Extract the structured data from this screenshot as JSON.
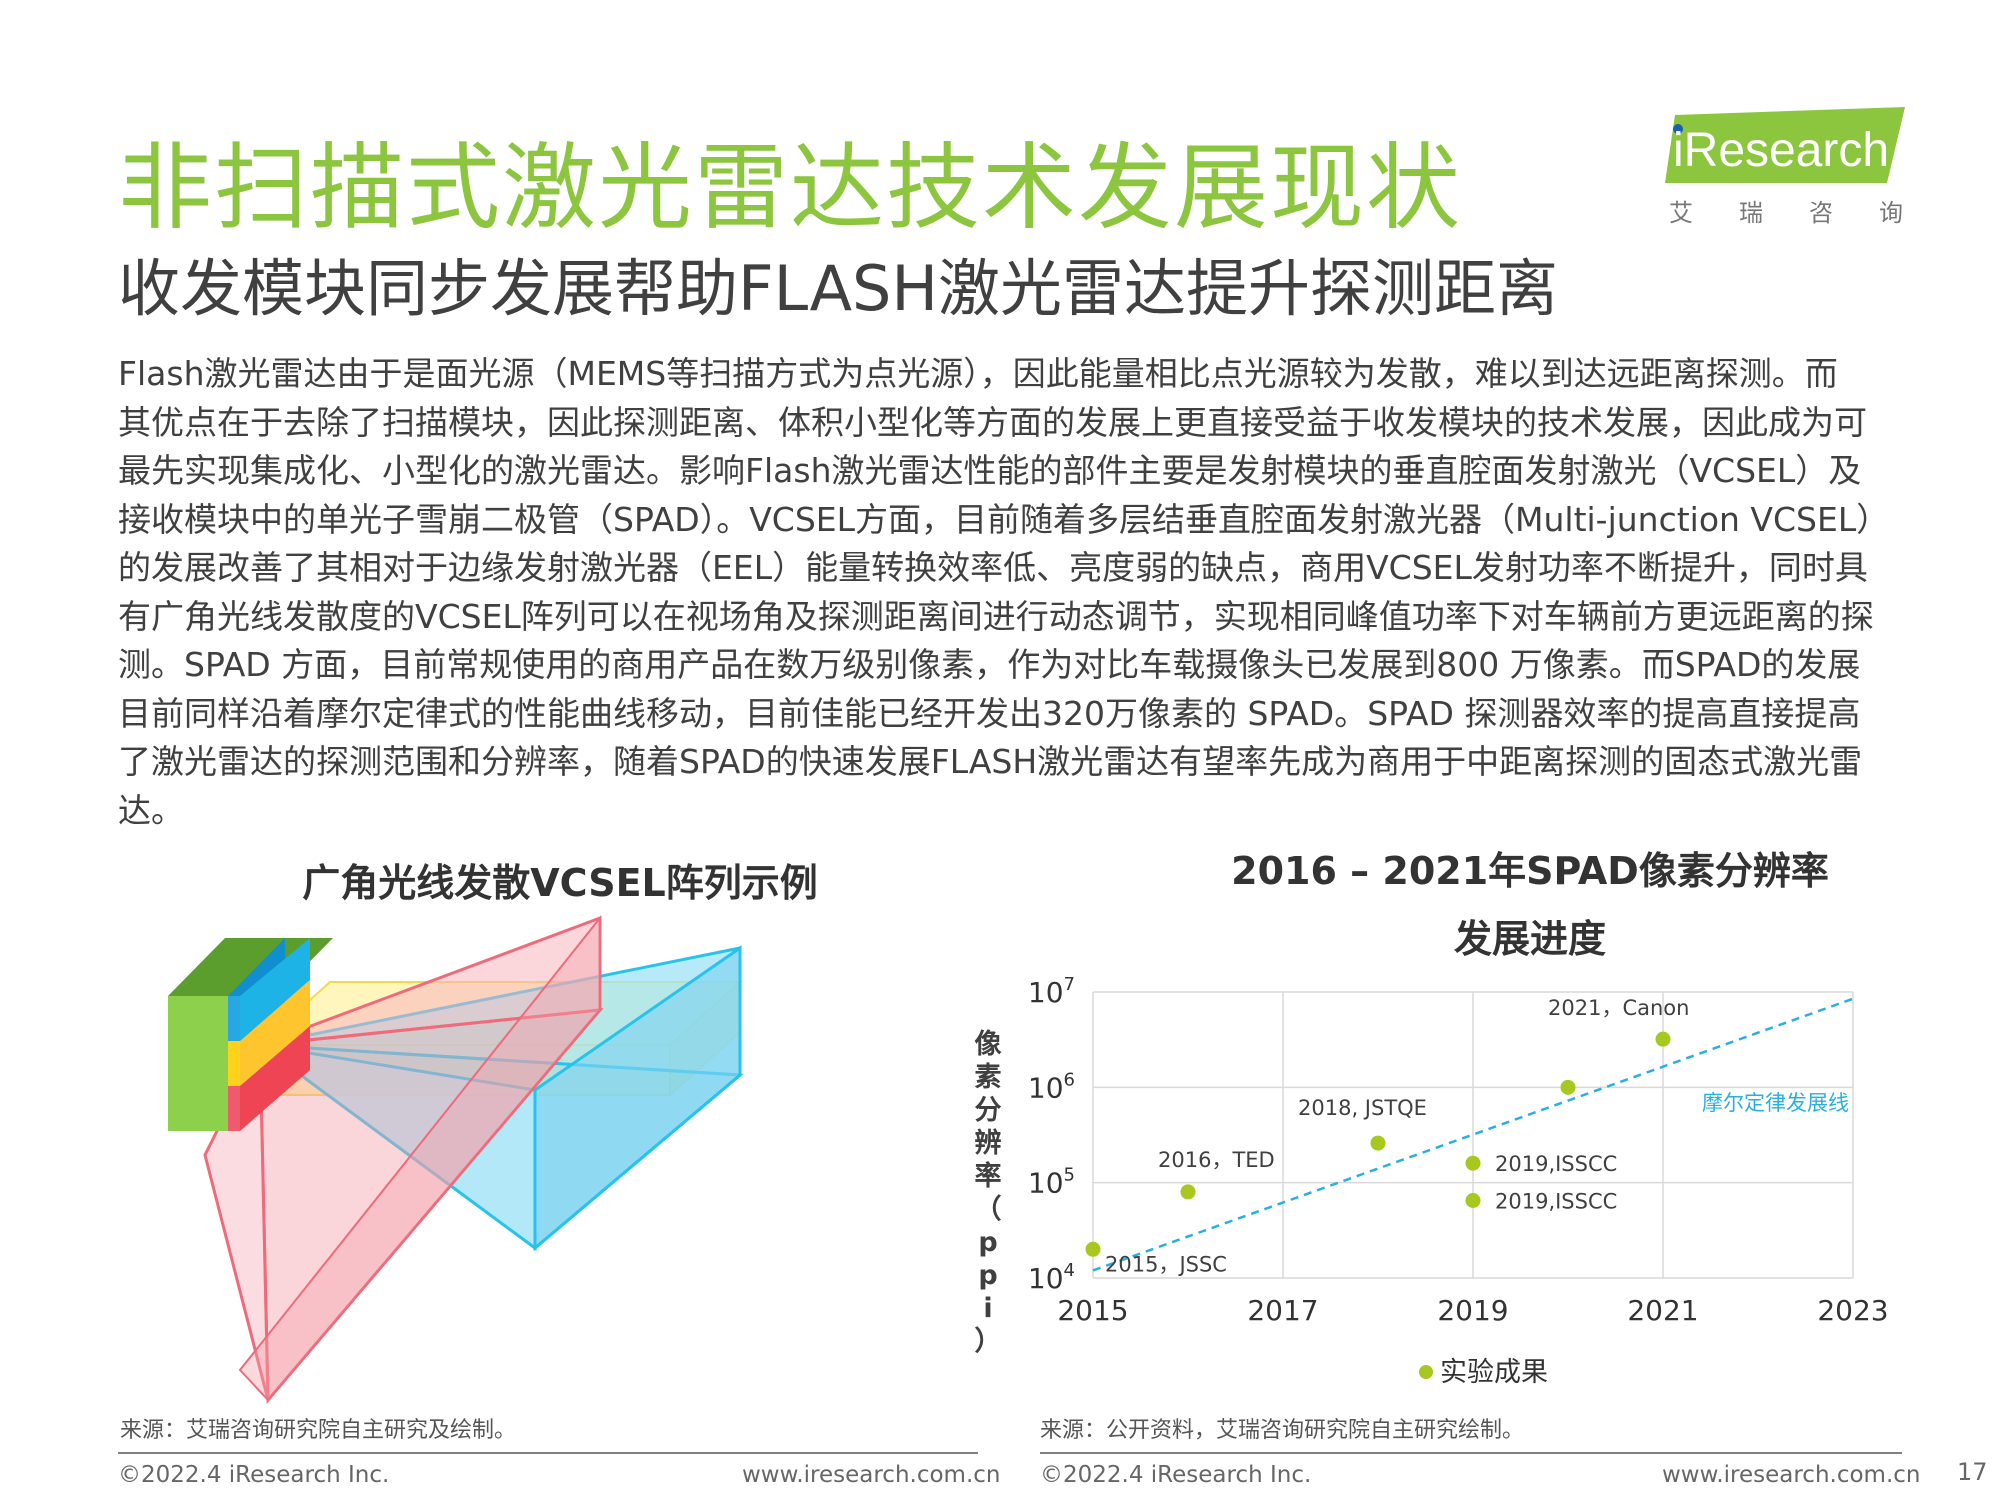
{
  "header": {
    "title": "非扫描式激光雷达技术发展现状",
    "subtitle": "收发模块同步发展帮助FLASH激光雷达提升探测距离"
  },
  "logo": {
    "wordmark": "iResearch",
    "chinese": "艾瑞咨询"
  },
  "body_text": [
    "Flash激光雷达由于是面光源（MEMS等扫描方式为点光源），因此能量相比点光源较为发散，难以到达远距离探测。而",
    "其优点在于去除了扫描模块，因此探测距离、体积小型化等方面的发展上更直接受益于收发模块的技术发展，因此成为可",
    "最先实现集成化、小型化的激光雷达。影响Flash激光雷达性能的部件主要是发射模块的垂直腔面发射激光（VCSEL）及",
    "接收模块中的单光子雪崩二极管（SPAD）。VCSEL方面，目前随着多层结垂直腔面发射激光器（Multi-junction VCSEL）",
    "的发展改善了其相对于边缘发射激光器（EEL）能量转换效率低、亮度弱的缺点，商用VCSEL发射功率不断提升，同时具",
    "有广角光线发散度的VCSEL阵列可以在视场角及探测距离间进行动态调节，实现相同峰值功率下对车辆前方更远距离的探",
    "测。SPAD 方面，目前常规使用的商用产品在数万级别像素，作为对比车载摄像头已发展到800 万像素。而SPAD的发展",
    "目前同样沿着摩尔定律式的性能曲线移动，目前佳能已经开发出320万像素的 SPAD。SPAD 探测器效率的提高直接提高",
    "了激光雷达的探测范围和分辨率，随着SPAD的快速发展FLASH激光雷达有望率先成为商用于中距离探测的固态式激光雷",
    "达。"
  ],
  "left_panel": {
    "title": "广角光线发散VCSEL阵列示例",
    "source": "来源：艾瑞咨询研究院自主研究及绘制。",
    "colors": {
      "green": "#8dc63f",
      "blue": "#29b6e6",
      "yellow": "#fff0a0",
      "red": "#f4a0aa"
    }
  },
  "right_panel": {
    "title_line1": "2016 – 2021年SPAD像素分辨率",
    "title_line2": "发展进度",
    "source": "来源：公开资料，艾瑞咨询研究院自主研究绘制。"
  },
  "chart_data": {
    "type": "scatter",
    "title": "2016 – 2021年SPAD像素分辨率发展进度",
    "ylabel": "像素分辨率（ppi）",
    "xlabel": "",
    "x_ticks": [
      "2015",
      "2017",
      "2019",
      "2021",
      "2023"
    ],
    "y_ticks": [
      {
        "base": "10",
        "exp": "4",
        "value": 10000
      },
      {
        "base": "10",
        "exp": "5",
        "value": 100000
      },
      {
        "base": "10",
        "exp": "6",
        "value": 1000000
      },
      {
        "base": "10",
        "exp": "7",
        "value": 10000000
      }
    ],
    "xlim": [
      2015,
      2023
    ],
    "ylim": [
      10000,
      10000000
    ],
    "y_scale": "log",
    "grid": true,
    "series": [
      {
        "name": "实验成果",
        "color": "#a6c81f",
        "points": [
          {
            "x": 2015,
            "y": 20000,
            "label": "2015，JSSC"
          },
          {
            "x": 2016,
            "y": 80000,
            "label": "2016，TED"
          },
          {
            "x": 2018,
            "y": 260000,
            "label": "2018, JSTQE"
          },
          {
            "x": 2019,
            "y": 160000,
            "label": "2019,ISSCC"
          },
          {
            "x": 2019,
            "y": 65000,
            "label": "2019,ISSCC"
          },
          {
            "x": 2020,
            "y": 1000000,
            "label": ""
          },
          {
            "x": 2021,
            "y": 3200000,
            "label": "2021，Canon"
          }
        ]
      }
    ],
    "trend_line": {
      "name": "摩尔定律发展线",
      "color": "#29b0e0",
      "from": {
        "x": 2015,
        "y": 12000
      },
      "to": {
        "x": 2023,
        "y": 8500000
      }
    },
    "legend": {
      "position": "bottom",
      "label": "实验成果"
    }
  },
  "footer": {
    "left_copyright": "©2022.4 iResearch Inc.",
    "left_url": "www.iresearch.com.cn",
    "right_copyright": "©2022.4 iResearch Inc.",
    "right_url": "www.iresearch.com.cn",
    "page_number": "17"
  }
}
